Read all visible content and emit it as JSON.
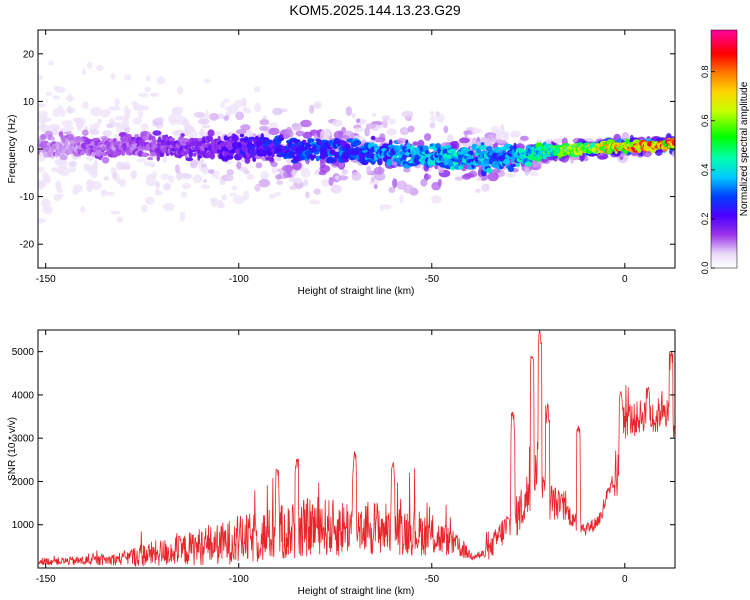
{
  "figure": {
    "title": "KOM5.2025.144.13.23.G29"
  },
  "chart_data": [
    {
      "type": "heatmap",
      "xlabel": "Height of straight line (km)",
      "ylabel": "Frequency (Hz)",
      "xlim": [
        -152,
        13
      ],
      "ylim": [
        -25,
        25
      ],
      "xticks": [
        -150,
        -100,
        -50,
        0
      ],
      "yticks": [
        -20,
        -10,
        0,
        10,
        20
      ],
      "xtick_labels": [
        "-150",
        "-100",
        "-50",
        "0"
      ],
      "ytick_labels": [
        "-20",
        "-10",
        "0",
        "10",
        "20"
      ],
      "colorbar": {
        "label": "Normalized spectral amplitude",
        "range": [
          0,
          0.97
        ],
        "ticks": [
          0,
          0.2,
          0.4,
          0.6,
          0.8
        ],
        "tick_labels": [
          "0.0",
          "0.2",
          "0.4",
          "0.6",
          "0.8"
        ],
        "colormap": "rainbow (white-purple-blue-cyan-green-yellow-orange-red-magenta)"
      },
      "ridge": {
        "description": "Concentrated spectral energy near 0 Hz, scattered and weak at low heights, strengthening and narrowing toward 0 km",
        "x": [
          -150,
          -140,
          -130,
          -120,
          -110,
          -100,
          -90,
          -80,
          -70,
          -60,
          -50,
          -40,
          -30,
          -20,
          -10,
          0,
          13
        ],
        "center_freq": [
          0.5,
          0.5,
          0.5,
          0.5,
          0.5,
          0.5,
          0,
          0,
          -0.5,
          -1,
          -1.5,
          -2,
          -2,
          -0.5,
          0,
          0.5,
          1
        ],
        "peak_amplitude": [
          0.12,
          0.15,
          0.15,
          0.18,
          0.2,
          0.25,
          0.3,
          0.35,
          0.35,
          0.4,
          0.45,
          0.45,
          0.4,
          0.6,
          0.75,
          0.9,
          0.97
        ],
        "spread_hz": [
          12,
          12,
          12,
          11,
          10,
          9,
          8,
          8,
          7,
          7,
          6,
          5,
          4,
          2,
          1.5,
          1.5,
          1.5
        ]
      }
    },
    {
      "type": "line",
      "xlabel": "Height of straight line (km)",
      "ylabel": "SNR (10 * v/v)",
      "xlim": [
        -152,
        13
      ],
      "ylim": [
        0,
        5500
      ],
      "xticks": [
        -150,
        -100,
        -50,
        0
      ],
      "yticks": [
        1000,
        2000,
        3000,
        4000,
        5000
      ],
      "xtick_labels": [
        "-150",
        "-100",
        "-50",
        "0"
      ],
      "ytick_labels": [
        "1000",
        "2000",
        "3000",
        "4000",
        "5000"
      ],
      "color": "#e8252a",
      "series": [
        {
          "x": [
            -152,
            -145,
            -140,
            -135,
            -130,
            -125,
            -120,
            -115,
            -110,
            -105,
            -100,
            -95,
            -90,
            -85,
            -80,
            -75,
            -70,
            -65,
            -60,
            -55,
            -50,
            -45,
            -40,
            -37,
            -35,
            -33,
            -30,
            -28,
            -26,
            -25,
            -24,
            -23,
            -22,
            -21,
            -20,
            -18,
            -16,
            -14,
            -12,
            -10,
            -8,
            -6,
            -5,
            -4,
            -3,
            -2,
            -1,
            0,
            1,
            2,
            4,
            6,
            8,
            10,
            12,
            13
          ],
          "values": [
            150,
            160,
            170,
            180,
            220,
            300,
            350,
            400,
            500,
            550,
            650,
            700,
            800,
            850,
            1000,
            900,
            1000,
            950,
            900,
            850,
            750,
            600,
            300,
            300,
            400,
            700,
            1000,
            1200,
            1500,
            1700,
            2000,
            2500,
            2300,
            2000,
            1600,
            1500,
            1400,
            1200,
            1000,
            900,
            1000,
            1200,
            1600,
            1700,
            1900,
            2000,
            3000,
            3400,
            3500,
            3400,
            3500,
            3600,
            3400,
            3800,
            3300,
            3000
          ],
          "spikes": [
            {
              "x": -90,
              "y": 2300
            },
            {
              "x": -85,
              "y": 2550
            },
            {
              "x": -70,
              "y": 2700
            },
            {
              "x": -60,
              "y": 2500
            },
            {
              "x": -29,
              "y": 3600
            },
            {
              "x": -24,
              "y": 4900
            },
            {
              "x": -22,
              "y": 5500
            },
            {
              "x": -20,
              "y": 3800
            },
            {
              "x": -12,
              "y": 3300
            },
            {
              "x": -1,
              "y": 4100
            },
            {
              "x": 6,
              "y": 4200
            },
            {
              "x": 12,
              "y": 5000
            }
          ],
          "noise_amplitude": [
            100,
            120,
            150,
            150,
            200,
            350,
            400,
            450,
            550,
            600,
            700,
            750,
            800,
            850,
            850,
            850,
            800,
            800,
            750,
            700,
            600,
            400,
            150,
            150,
            300,
            400,
            500,
            600,
            700,
            800,
            900,
            900,
            800,
            700,
            600,
            500,
            400,
            300,
            250,
            200,
            200,
            250,
            300,
            300,
            400,
            500,
            600,
            600,
            500,
            500,
            500,
            500,
            500,
            500,
            500,
            500
          ]
        }
      ]
    }
  ]
}
